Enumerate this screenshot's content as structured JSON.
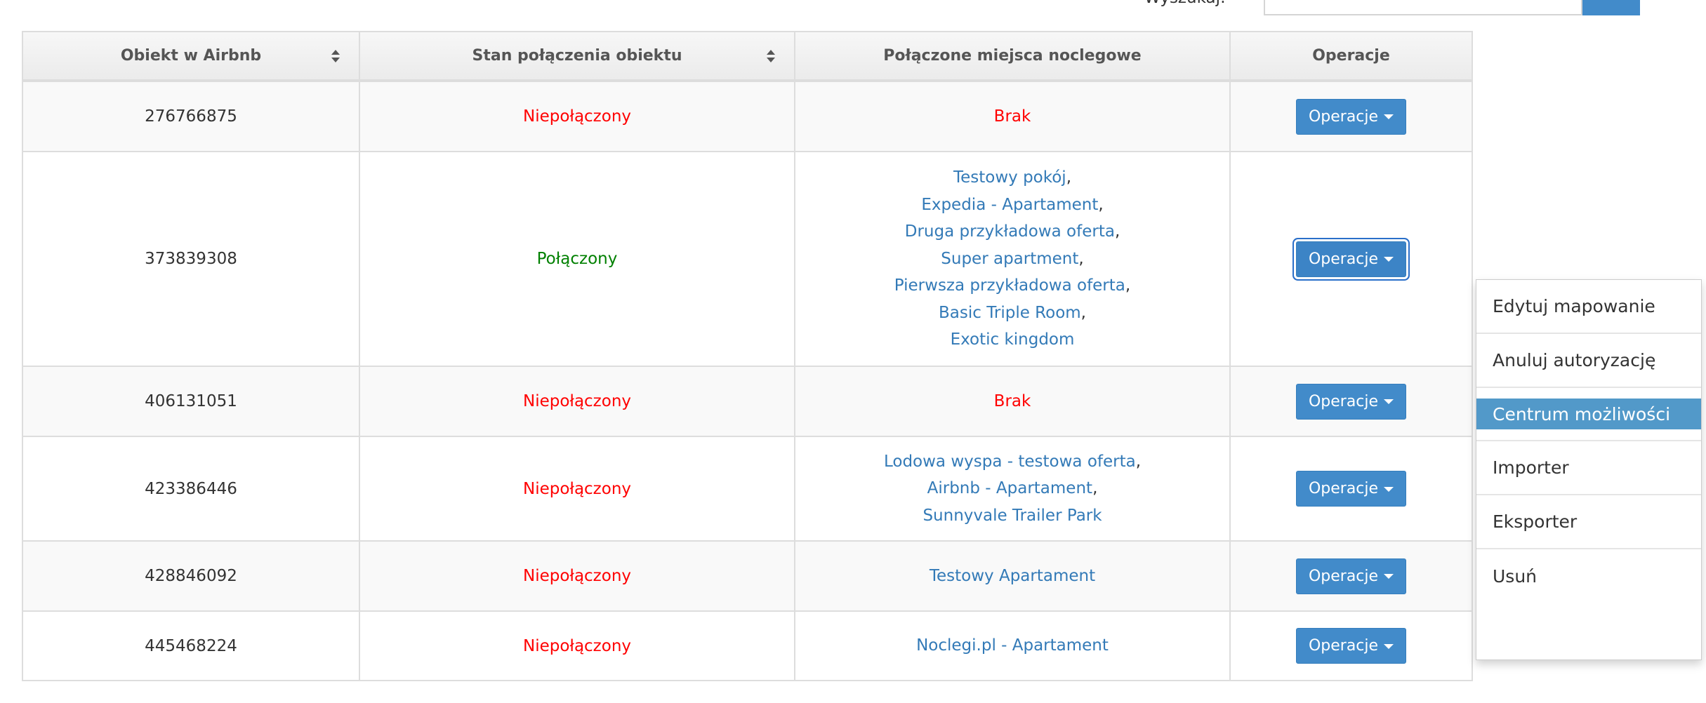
{
  "search": {
    "label": "Wyszukaj:",
    "value": "",
    "button_color": "#428bca"
  },
  "table": {
    "headers": [
      "Obiekt w Airbnb",
      "Stan połączenia obiektu",
      "Połączone miejsca noclegowe",
      "Operacje"
    ],
    "rows": [
      {
        "id": "276766875",
        "status": "Niepołączony",
        "status_color": "#ff0000",
        "places": [],
        "none_label": "Brak",
        "op": "Operacje"
      },
      {
        "id": "373839308",
        "status": "Połączony",
        "status_color": "#008000",
        "places": [
          "Testowy pokój",
          "Expedia - Apartament",
          "Druga przykładowa oferta",
          "Super apartment",
          "Pierwsza przykładowa oferta",
          "Basic Triple Room",
          "Exotic kingdom"
        ],
        "op": "Operacje"
      },
      {
        "id": "406131051",
        "status": "Niepołączony",
        "status_color": "#ff0000",
        "places": [],
        "none_label": "Brak",
        "op": "Operacje"
      },
      {
        "id": "423386446",
        "status": "Niepołączony",
        "status_color": "#ff0000",
        "places": [
          "Lodowa wyspa - testowa oferta",
          "Airbnb - Apartament",
          "Sunnyvale Trailer Park"
        ],
        "op": "Operacje"
      },
      {
        "id": "428846092",
        "status": "Niepołączony",
        "status_color": "#ff0000",
        "places": [
          "Testowy Apartament"
        ],
        "op": "Operacje"
      },
      {
        "id": "445468224",
        "status": "Niepołączony",
        "status_color": "#ff0000",
        "places": [
          "Noclegi.pl - Apartament"
        ],
        "op": "Operacje"
      }
    ]
  },
  "menu": {
    "items": [
      "Edytuj mapowanie",
      "Anuluj autoryzację",
      "Centrum możliwości",
      "Importer",
      "Eksporter",
      "Usuń"
    ],
    "highlighted": 2
  }
}
